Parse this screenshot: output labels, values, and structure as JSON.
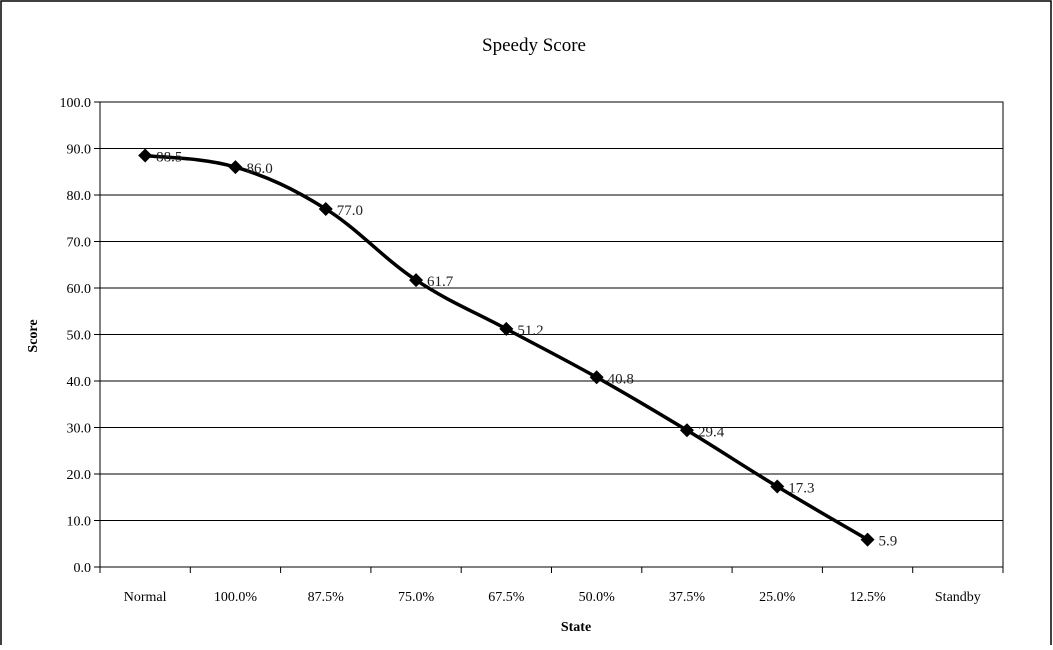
{
  "chart_data": {
    "type": "line",
    "title": "Speedy Score",
    "xlabel": "State",
    "ylabel": "Score",
    "categories": [
      "Normal",
      "100.0%",
      "87.5%",
      "75.0%",
      "67.5%",
      "50.0%",
      "37.5%",
      "25.0%",
      "12.5%",
      "Standby"
    ],
    "series": [
      {
        "values": [
          88.5,
          86.0,
          77.0,
          61.7,
          51.2,
          40.8,
          29.4,
          17.3,
          5.9,
          null
        ],
        "labels": [
          "88.5",
          "86.0",
          "77.0",
          "61.7",
          "51.2",
          "40.8",
          "29.4",
          "17.3",
          "5.9",
          ""
        ],
        "color": "#000000",
        "marker": "diamond"
      }
    ],
    "ylim": [
      0,
      100
    ],
    "yticks": [
      "0.0",
      "10.0",
      "20.0",
      "30.0",
      "40.0",
      "50.0",
      "60.0",
      "70.0",
      "80.0",
      "90.0",
      "100.0"
    ],
    "grid": "horizontal",
    "legend": "none"
  }
}
